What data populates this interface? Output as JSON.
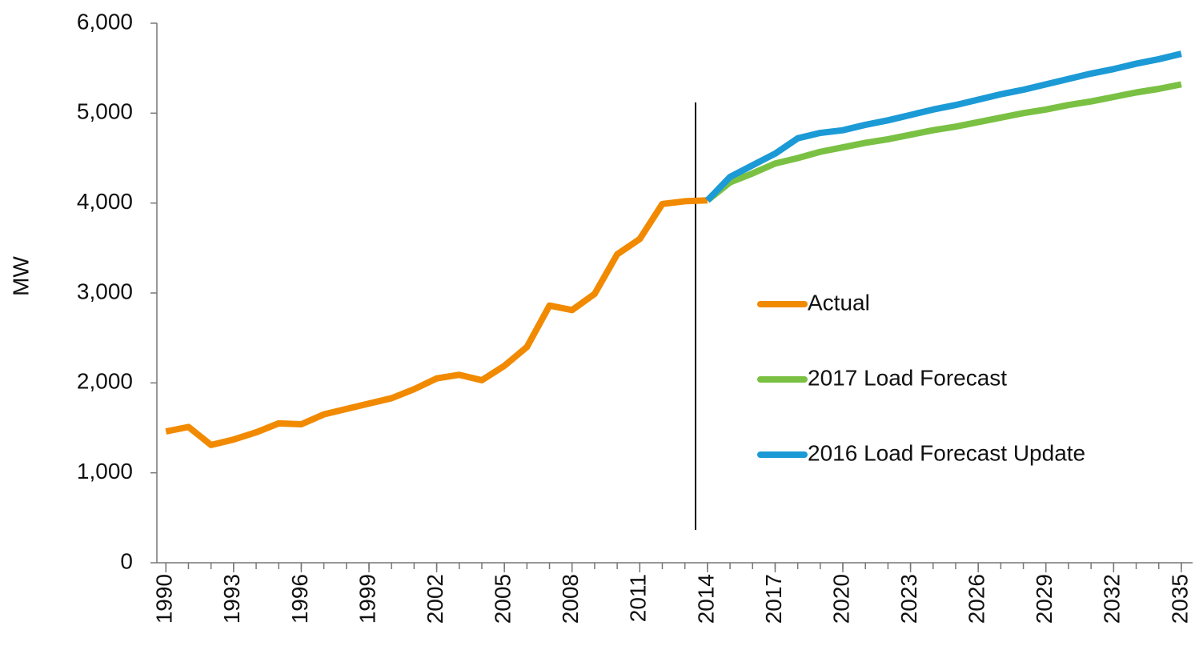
{
  "chart_data": {
    "type": "line",
    "y_label": "MW",
    "x": [
      1990,
      1991,
      1992,
      1993,
      1994,
      1995,
      1996,
      1997,
      1998,
      1999,
      2000,
      2001,
      2002,
      2003,
      2004,
      2005,
      2006,
      2007,
      2008,
      2009,
      2010,
      2011,
      2012,
      2013,
      2014,
      2015,
      2016,
      2017,
      2018,
      2019,
      2020,
      2021,
      2022,
      2023,
      2024,
      2025,
      2026,
      2027,
      2028,
      2029,
      2030,
      2031,
      2032,
      2033,
      2034,
      2035
    ],
    "series": [
      {
        "name": "Actual",
        "color": "#f18a00",
        "values": [
          1460,
          1510,
          1310,
          1370,
          1450,
          1550,
          1540,
          1650,
          1710,
          1770,
          1830,
          1930,
          2050,
          2090,
          2030,
          2190,
          2400,
          2860,
          2810,
          2990,
          3430,
          3600,
          3990,
          4020,
          4030,
          null,
          null,
          null,
          null,
          null,
          null,
          null,
          null,
          null,
          null,
          null,
          null,
          null,
          null,
          null,
          null,
          null,
          null,
          null,
          null,
          null
        ]
      },
      {
        "name": "2017 Load Forecast",
        "color": "#7ac143",
        "values": [
          null,
          null,
          null,
          null,
          null,
          null,
          null,
          null,
          null,
          null,
          null,
          null,
          null,
          null,
          null,
          null,
          null,
          null,
          null,
          null,
          null,
          null,
          null,
          null,
          4030,
          4230,
          4330,
          4440,
          4500,
          4570,
          4620,
          4670,
          4710,
          4760,
          4810,
          4850,
          4900,
          4950,
          5000,
          5040,
          5090,
          5130,
          5180,
          5230,
          5270,
          5320
        ]
      },
      {
        "name": "2016 Load Forecast Update",
        "color": "#1b9ad6",
        "values": [
          null,
          null,
          null,
          null,
          null,
          null,
          null,
          null,
          null,
          null,
          null,
          null,
          null,
          null,
          null,
          null,
          null,
          null,
          null,
          null,
          null,
          null,
          null,
          null,
          4030,
          4290,
          4420,
          4550,
          4720,
          4780,
          4810,
          4870,
          4920,
          4980,
          5040,
          5090,
          5150,
          5210,
          5260,
          5320,
          5380,
          5440,
          5490,
          5550,
          5600,
          5660
        ]
      }
    ],
    "xlim": [
      1989.6,
      2035.5
    ],
    "xticks": [
      1990,
      1993,
      1996,
      1999,
      2002,
      2005,
      2008,
      2011,
      2014,
      2017,
      2020,
      2023,
      2026,
      2029,
      2032,
      2035
    ],
    "ylim": [
      0,
      6000
    ],
    "yticks": [
      0,
      {
        "value": 1000,
        "label": "1,000"
      },
      {
        "value": 2000,
        "label": "2,000"
      },
      {
        "value": 3000,
        "label": "3,000"
      },
      {
        "value": 4000,
        "label": "4,000"
      },
      {
        "value": 5000,
        "label": "5,000"
      },
      {
        "value": 6000,
        "label": "6,000"
      }
    ],
    "grid": false,
    "legend": "center-right"
  }
}
